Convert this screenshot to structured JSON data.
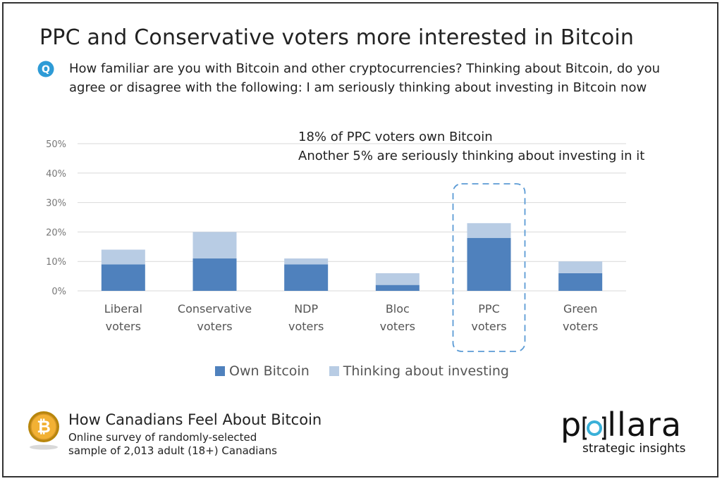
{
  "page": {
    "title": "PPC and Conservative voters more interested in Bitcoin",
    "question_badge": "Q",
    "question": "How familiar are you with Bitcoin and other cryptocurrencies? Thinking about Bitcoin, do you agree or disagree with the following: I am seriously thinking about investing in Bitcoin now",
    "annotation": [
      "18% of PPC voters own Bitcoin",
      "Another 5% are seriously thinking about investing in it"
    ]
  },
  "chart_data": {
    "type": "bar",
    "stacked": true,
    "categories": [
      [
        "Liberal",
        "voters"
      ],
      [
        "Conservative",
        "voters"
      ],
      [
        "NDP",
        "voters"
      ],
      [
        "Bloc",
        "voters"
      ],
      [
        "PPC",
        "voters"
      ],
      [
        "Green",
        "voters"
      ]
    ],
    "series": [
      {
        "name": "Own Bitcoin",
        "values": [
          9,
          11,
          9,
          2,
          18,
          6
        ],
        "color": "#4f81bd"
      },
      {
        "name": "Thinking about investing",
        "values": [
          5,
          9,
          2,
          4,
          5,
          4
        ],
        "color": "#b8cce4"
      }
    ],
    "yticks": [
      "0%",
      "10%",
      "20%",
      "30%",
      "40%",
      "50%"
    ],
    "ylim": [
      0,
      50
    ],
    "grid": true,
    "highlight_category": "PPC",
    "legend_position": "bottom"
  },
  "footer": {
    "icon": "bitcoin-coin-icon",
    "coin_symbol": "₿",
    "title": "How Canadians Feel About Bitcoin",
    "desc_line1": "Online survey of randomly-selected",
    "desc_line2": "sample of 2,013 adult (18+) Canadians"
  },
  "logo": {
    "part1": "p",
    "part2": "llara",
    "tagline": "strategic insights"
  },
  "colors": {
    "own": "#4f81bd",
    "thinking": "#b8cce4",
    "grid": "#d9d9d9",
    "highlight_border": "#5b9bd5",
    "badge": "#2e9bd6",
    "logo_accent": "#3ab0d8"
  }
}
